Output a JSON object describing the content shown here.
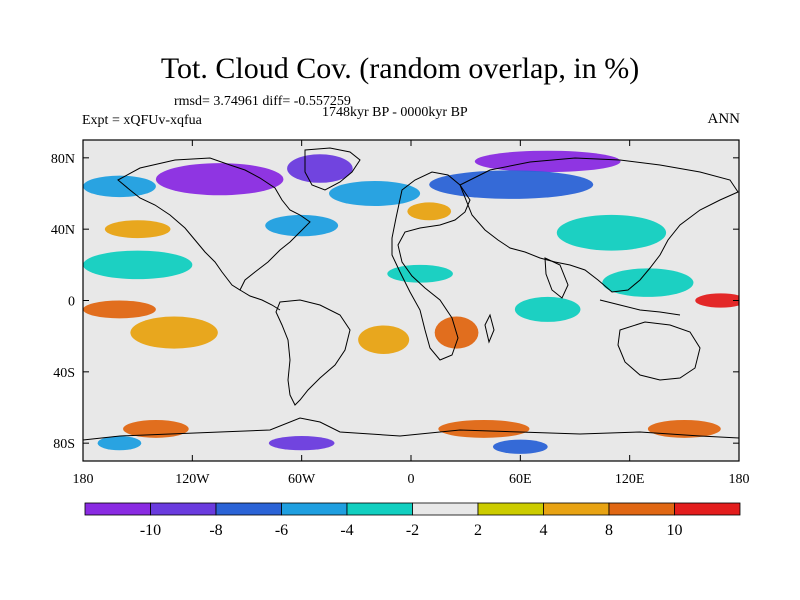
{
  "title": "Tot. Cloud Cov. (random overlap, in %)",
  "stats": "rmsd= 3.74961 diff= -0.557259",
  "period": "1748kyr BP - 0000kyr BP",
  "experiment": "Expt = xQFUv-xqfua",
  "season": "ANN",
  "map": {
    "projection": "cylindrical equidistant",
    "lon_range": [
      -180,
      180
    ],
    "lat_range": [
      -90,
      90
    ],
    "background_color": "#e8e8e8",
    "lat_ticks": [
      {
        "value": 80,
        "label": "80N"
      },
      {
        "value": 40,
        "label": "40N"
      },
      {
        "value": 0,
        "label": "0"
      },
      {
        "value": -40,
        "label": "40S"
      },
      {
        "value": -80,
        "label": "80S"
      }
    ],
    "lon_ticks": [
      {
        "value": -180,
        "label": "180"
      },
      {
        "value": -120,
        "label": "120W"
      },
      {
        "value": -60,
        "label": "60W"
      },
      {
        "value": 0,
        "label": "0"
      },
      {
        "value": 60,
        "label": "60E"
      },
      {
        "value": 120,
        "label": "120E"
      },
      {
        "value": 180,
        "label": "180"
      }
    ],
    "anomaly_regions": [
      {
        "name": "arctic-canada",
        "level": -12,
        "lon": -105,
        "lat": 68,
        "rx": 35,
        "ry": 9
      },
      {
        "name": "greenland-north",
        "level": -10,
        "lon": -50,
        "lat": 74,
        "rx": 18,
        "ry": 8
      },
      {
        "name": "siberia-north",
        "level": -12,
        "lon": 75,
        "lat": 78,
        "rx": 40,
        "ry": 6
      },
      {
        "name": "north-asia",
        "level": -8,
        "lon": 55,
        "lat": 65,
        "rx": 45,
        "ry": 8
      },
      {
        "name": "north-atlantic",
        "level": -6,
        "lon": -20,
        "lat": 60,
        "rx": 25,
        "ry": 7
      },
      {
        "name": "north-pacific",
        "level": -6,
        "lon": -160,
        "lat": 64,
        "rx": 20,
        "ry": 6
      },
      {
        "name": "east-asia-band",
        "level": -4,
        "lon": 110,
        "lat": 38,
        "rx": 30,
        "ry": 10
      },
      {
        "name": "west-pacific-tropics",
        "level": -4,
        "lon": 130,
        "lat": 10,
        "rx": 25,
        "ry": 8
      },
      {
        "name": "eastern-pacific-cold",
        "level": -4,
        "lon": -150,
        "lat": 20,
        "rx": 30,
        "ry": 8
      },
      {
        "name": "central-pacific-warm",
        "level": 8,
        "lon": -160,
        "lat": -5,
        "rx": 20,
        "ry": 5
      },
      {
        "name": "tropical-pacific-west",
        "level": 10,
        "lon": 170,
        "lat": 0,
        "rx": 14,
        "ry": 4
      },
      {
        "name": "south-pacific",
        "level": 4,
        "lon": -130,
        "lat": -18,
        "rx": 24,
        "ry": 9
      },
      {
        "name": "south-africa",
        "level": 8,
        "lon": 25,
        "lat": -18,
        "rx": 12,
        "ry": 9
      },
      {
        "name": "south-atlantic",
        "level": 4,
        "lon": -15,
        "lat": -22,
        "rx": 14,
        "ry": 8
      },
      {
        "name": "north-africa",
        "level": -4,
        "lon": 5,
        "lat": 15,
        "rx": 18,
        "ry": 5
      },
      {
        "name": "indian-ocean",
        "level": -4,
        "lon": 75,
        "lat": -5,
        "rx": 18,
        "ry": 7
      },
      {
        "name": "southern-ocean-warm-1",
        "level": 8,
        "lon": -140,
        "lat": -72,
        "rx": 18,
        "ry": 5
      },
      {
        "name": "southern-ocean-warm-2",
        "level": 8,
        "lon": 40,
        "lat": -72,
        "rx": 25,
        "ry": 5
      },
      {
        "name": "southern-ocean-warm-3",
        "level": 8,
        "lon": 150,
        "lat": -72,
        "rx": 20,
        "ry": 5
      },
      {
        "name": "antarctic-cold-1",
        "level": -10,
        "lon": -60,
        "lat": -80,
        "rx": 18,
        "ry": 4
      },
      {
        "name": "antarctic-cold-2",
        "level": -8,
        "lon": 60,
        "lat": -82,
        "rx": 15,
        "ry": 4
      },
      {
        "name": "antarctic-cold-3",
        "level": -6,
        "lon": -160,
        "lat": -80,
        "rx": 12,
        "ry": 4
      },
      {
        "name": "mid-atlantic-cold",
        "level": -6,
        "lon": -60,
        "lat": 42,
        "rx": 20,
        "ry": 6
      },
      {
        "name": "europe-warm",
        "level": 4,
        "lon": 10,
        "lat": 50,
        "rx": 12,
        "ry": 5
      },
      {
        "name": "north-pacific-warm",
        "level": 4,
        "lon": -150,
        "lat": 40,
        "rx": 18,
        "ry": 5
      }
    ]
  },
  "colorbar": {
    "colors": [
      {
        "level": -12,
        "color": "#8a2be2"
      },
      {
        "level": -10,
        "color": "#6a3bde"
      },
      {
        "level": -8,
        "color": "#2b63d6"
      },
      {
        "level": -6,
        "color": "#1f9fe0"
      },
      {
        "level": -4,
        "color": "#11cfc0"
      },
      {
        "level": -2,
        "color": "#e8e8e8"
      },
      {
        "level": 2,
        "color": "#cccc00"
      },
      {
        "level": 4,
        "color": "#e8a313"
      },
      {
        "level": 8,
        "color": "#e06713"
      },
      {
        "level": 10,
        "color": "#e31d1d"
      }
    ],
    "labels": [
      "-10",
      "-8",
      "-6",
      "-4",
      "-2",
      "2",
      "4",
      "8",
      "10"
    ]
  }
}
